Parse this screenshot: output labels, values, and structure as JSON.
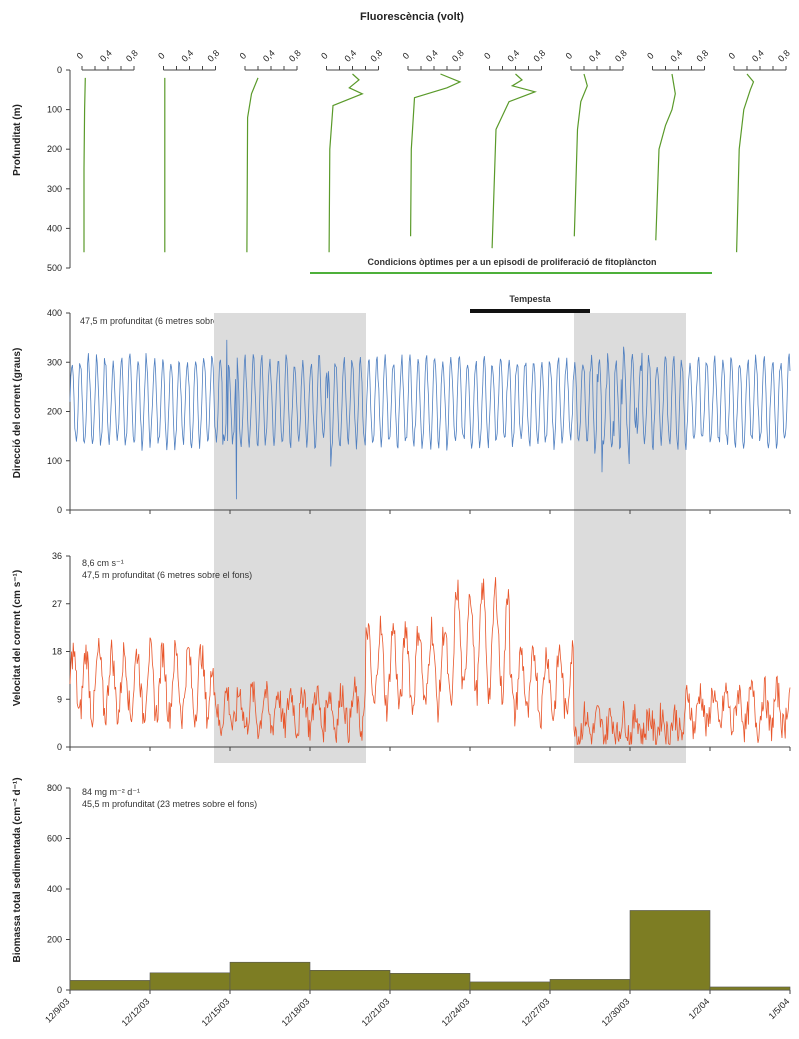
{
  "colors": {
    "fluorescence": "#5a9a2a",
    "direction": "#4f7fc0",
    "speed": "#e8552a",
    "biomass": "#7d7d23",
    "shade": "#dcdcdc",
    "bar_black": "#111111",
    "green_line": "#4db03a"
  },
  "chart_data": [
    {
      "type": "line",
      "title": "Fluorescència (volt)",
      "ylabel": "Profunditat (m)",
      "ylim": [
        0,
        500
      ],
      "yticks": [
        "0",
        "100",
        "200",
        "300",
        "400",
        "500"
      ],
      "xticks": [
        "0",
        "0,4",
        "0,8"
      ],
      "profiles": [
        {
          "points": [
            [
              0.05,
              20
            ],
            [
              0.04,
              100
            ],
            [
              0.03,
              250
            ],
            [
              0.03,
              460
            ]
          ]
        },
        {
          "points": [
            [
              0.02,
              20
            ],
            [
              0.02,
              200
            ],
            [
              0.02,
              460
            ]
          ]
        },
        {
          "points": [
            [
              0.2,
              20
            ],
            [
              0.1,
              60
            ],
            [
              0.04,
              120
            ],
            [
              0.03,
              460
            ]
          ]
        },
        {
          "points": [
            [
              0.4,
              10
            ],
            [
              0.5,
              25
            ],
            [
              0.35,
              45
            ],
            [
              0.55,
              60
            ],
            [
              0.1,
              90
            ],
            [
              0.05,
              200
            ],
            [
              0.04,
              460
            ]
          ]
        },
        {
          "points": [
            [
              0.5,
              10
            ],
            [
              0.8,
              30
            ],
            [
              0.6,
              45
            ],
            [
              0.1,
              70
            ],
            [
              0.05,
              200
            ],
            [
              0.04,
              420
            ]
          ]
        },
        {
          "points": [
            [
              0.4,
              10
            ],
            [
              0.5,
              25
            ],
            [
              0.35,
              40
            ],
            [
              0.7,
              55
            ],
            [
              0.3,
              80
            ],
            [
              0.1,
              150
            ],
            [
              0.04,
              450
            ]
          ]
        },
        {
          "points": [
            [
              0.2,
              10
            ],
            [
              0.25,
              40
            ],
            [
              0.15,
              80
            ],
            [
              0.1,
              150
            ],
            [
              0.05,
              420
            ]
          ]
        },
        {
          "points": [
            [
              0.3,
              10
            ],
            [
              0.35,
              60
            ],
            [
              0.3,
              100
            ],
            [
              0.2,
              140
            ],
            [
              0.1,
              200
            ],
            [
              0.05,
              430
            ]
          ]
        },
        {
          "points": [
            [
              0.2,
              10
            ],
            [
              0.3,
              30
            ],
            [
              0.25,
              50
            ],
            [
              0.15,
              100
            ],
            [
              0.08,
              200
            ],
            [
              0.04,
              460
            ]
          ]
        }
      ],
      "annotation": "Condicions òptimes per a un episodi de proliferació de fitoplàncton"
    },
    {
      "type": "line",
      "ylabel": "Direcció del corrent (graus)",
      "ylim": [
        0,
        400
      ],
      "yticks": [
        "0",
        "100",
        "200",
        "300",
        "400"
      ],
      "annotation": "47,5 m profunditat (6 metres sobre el fons)",
      "storm_label": "Tempesta",
      "xrange_days": [
        0,
        90
      ]
    },
    {
      "type": "line",
      "ylabel": "Velocitat del corrent (cm s⁻¹)",
      "ylim": [
        0,
        36
      ],
      "yticks": [
        "0",
        "9",
        "18",
        "27",
        "36"
      ],
      "annotation_line1": "8,6 cm s⁻¹",
      "annotation_line2": "47,5 m profunditat (6 metres sobre el fons)",
      "xrange_days": [
        0,
        90
      ]
    },
    {
      "type": "bar",
      "ylabel": "Biomassa total sedimentada (cm⁻² d⁻¹)",
      "ylim": [
        0,
        800
      ],
      "yticks": [
        "0",
        "200",
        "400",
        "600",
        "800"
      ],
      "annotation_line1": "84 mg m⁻² d⁻¹",
      "annotation_line2": "45,5 m profunditat (23 metres sobre el fons)",
      "x_date_labels": [
        "12/9/03",
        "12/12/03",
        "12/15/03",
        "12/18/03",
        "12/21/03",
        "12/24/03",
        "12/27/03",
        "12/30/03",
        "1/2/04",
        "1/5/04"
      ],
      "bars": [
        {
          "from": 0,
          "to": 1,
          "value": 38
        },
        {
          "from": 1,
          "to": 2,
          "value": 68
        },
        {
          "from": 2,
          "to": 3,
          "value": 110
        },
        {
          "from": 3,
          "to": 4,
          "value": 78
        },
        {
          "from": 4,
          "to": 5,
          "value": 66
        },
        {
          "from": 5,
          "to": 6,
          "value": 32
        },
        {
          "from": 6,
          "to": 7,
          "value": 42
        },
        {
          "from": 7,
          "to": 8,
          "value": 315
        },
        {
          "from": 8,
          "to": 9,
          "value": 12
        }
      ]
    }
  ],
  "shaded_periods_days": [
    [
      18,
      37
    ],
    [
      63,
      77
    ]
  ],
  "storm_period_days": [
    50,
    65
  ]
}
